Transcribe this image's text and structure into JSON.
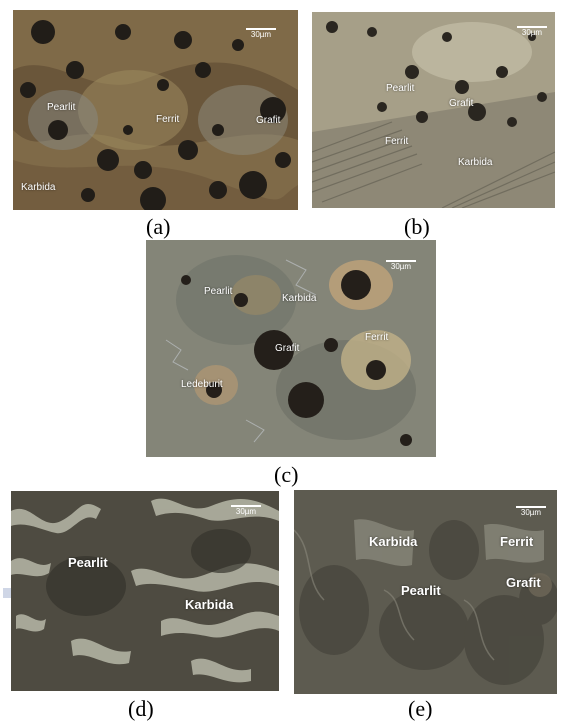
{
  "figure": {
    "panels": [
      {
        "id": "a",
        "caption": "(a)",
        "scale": "30µm",
        "labels": [
          "Pearlit",
          "Ferrit",
          "Grafit",
          "Karbida"
        ]
      },
      {
        "id": "b",
        "caption": "(b)",
        "scale": "30µm",
        "labels": [
          "Pearlit",
          "Grafit",
          "Ferrit",
          "Karbida"
        ]
      },
      {
        "id": "c",
        "caption": "(c)",
        "scale": "30µm",
        "labels": [
          "Pearlit",
          "Karbida",
          "Grafit",
          "Ferrit",
          "Ledeburit"
        ]
      },
      {
        "id": "d",
        "caption": "(d)",
        "scale": "30µm",
        "labels": [
          "Pearlit",
          "Karbida"
        ]
      },
      {
        "id": "e",
        "caption": "(e)",
        "scale": "30µm",
        "labels": [
          "Karbida",
          "Ferrit",
          "Pearlit",
          "Grafit"
        ]
      }
    ]
  },
  "colors": {
    "a_base": "#7f6a48",
    "b_base": "#a69f88",
    "c_base": "#848578",
    "d_base": "#4e4b41",
    "e_base": "#5d5b50",
    "graphite": "#211d18",
    "label": "#ffffff"
  }
}
